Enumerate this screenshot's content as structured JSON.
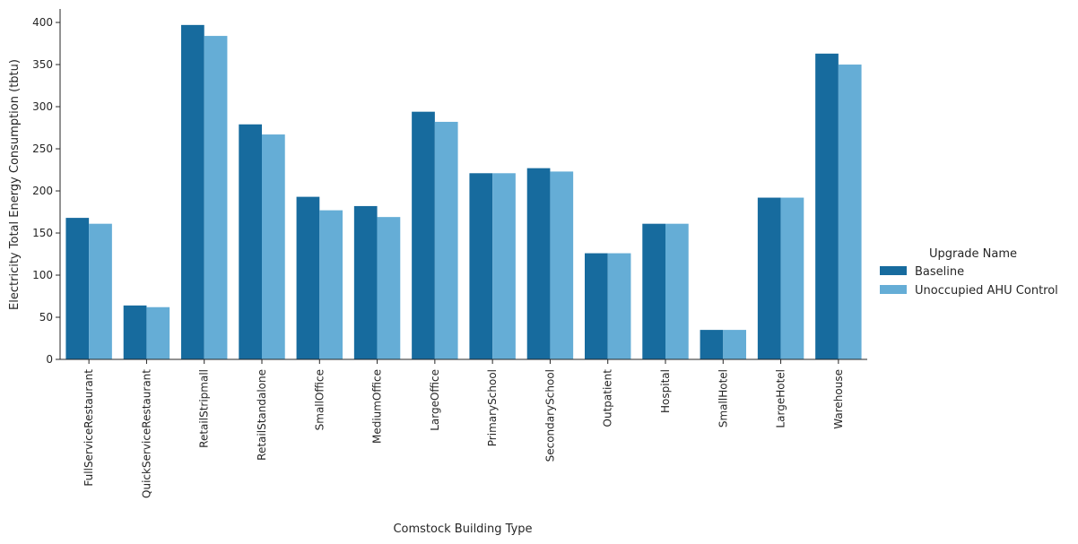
{
  "chart_data": {
    "type": "bar",
    "xlabel": "Comstock Building Type",
    "ylabel": "Electricity Total Energy Consumption (tbtu)",
    "ylim": [
      0,
      416
    ],
    "yticks": [
      0,
      50,
      100,
      150,
      200,
      250,
      300,
      350,
      400
    ],
    "categories": [
      "FullServiceRestaurant",
      "QuickServiceRestaurant",
      "RetailStripmall",
      "RetailStandalone",
      "SmallOffice",
      "MediumOffice",
      "LargeOffice",
      "PrimarySchool",
      "SecondarySchool",
      "Outpatient",
      "Hospital",
      "SmallHotel",
      "LargeHotel",
      "Warehouse"
    ],
    "legend_title": "Upgrade Name",
    "legend_position": "right",
    "grid": false,
    "series": [
      {
        "name": "Baseline",
        "color": "#176b9e",
        "values": [
          168,
          64,
          397,
          279,
          193,
          182,
          294,
          221,
          227,
          126,
          161,
          35,
          192,
          363
        ]
      },
      {
        "name": "Unoccupied AHU Control",
        "color": "#65add6",
        "values": [
          161,
          62,
          384,
          267,
          177,
          169,
          282,
          221,
          223,
          126,
          161,
          35,
          192,
          350
        ]
      }
    ]
  }
}
